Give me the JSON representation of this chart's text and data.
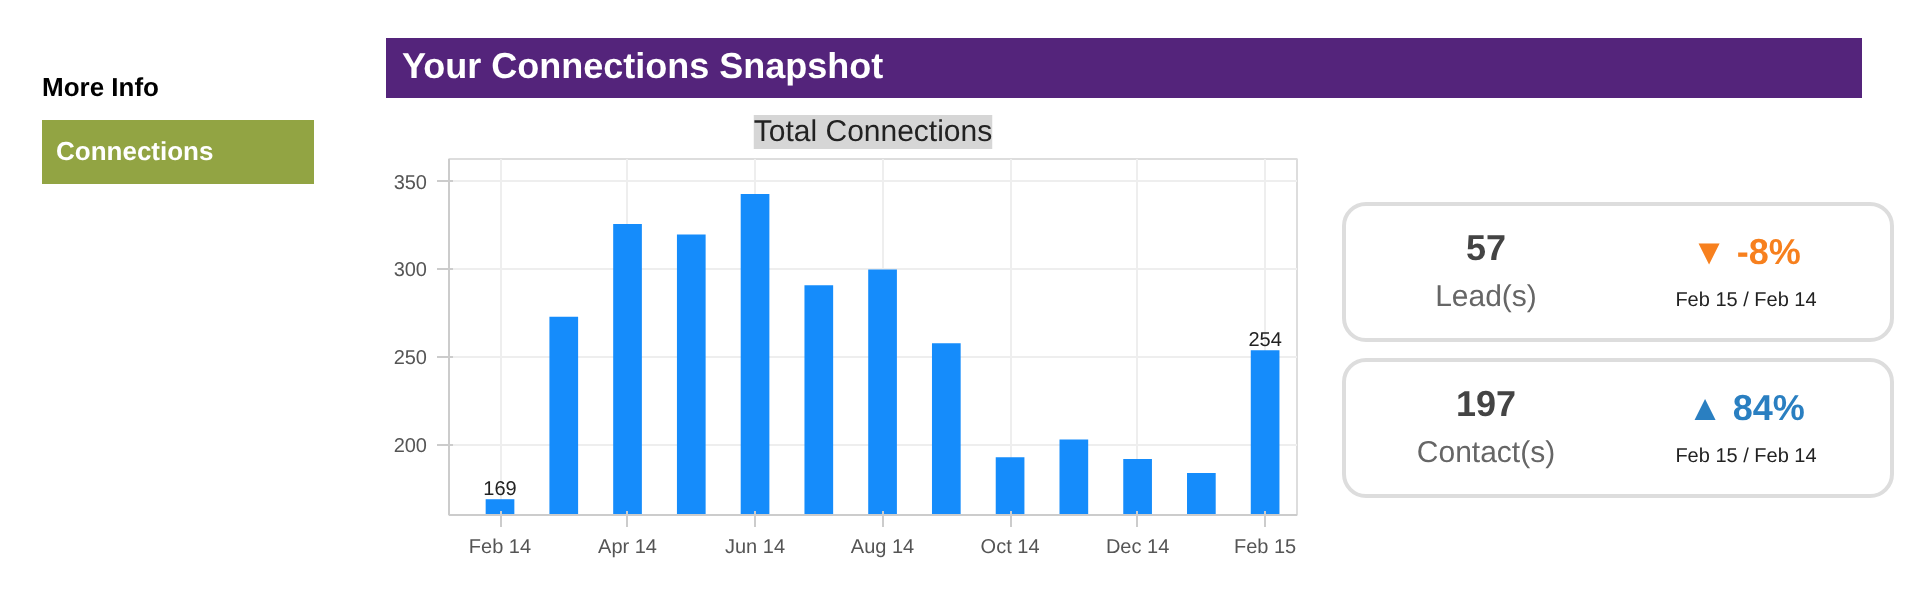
{
  "chart_data": [
    {
      "type": "other",
      "title": "Your Connections Snapshot",
      "annotations": [
        "More Info",
        "Connections"
      ]
    },
    {
      "type": "bar",
      "title": "Total Connections",
      "categories": [
        "Feb 14",
        null,
        "Apr 14",
        null,
        "Jun 14",
        null,
        "Aug 14",
        null,
        "Oct 14",
        null,
        "Dec 14",
        null,
        "Feb 15"
      ],
      "values": [
        169,
        273,
        326,
        320,
        343,
        291,
        300,
        258,
        193,
        203,
        192,
        184,
        254
      ],
      "value_labels": [
        "169",
        null,
        null,
        null,
        null,
        null,
        null,
        null,
        null,
        null,
        null,
        null,
        "254"
      ],
      "color": "#158cfb",
      "ylim": [
        160,
        363
      ],
      "yticks": [
        200,
        250,
        300,
        350
      ],
      "grid": true
    },
    {
      "type": "other",
      "annotations": [
        "57",
        "Lead(s)",
        "▼ -8%",
        "Feb 15 / Feb 14",
        "197",
        "Contact(s)",
        "▲ 84%",
        "Feb 15 / Feb 14"
      ]
    }
  ]
}
